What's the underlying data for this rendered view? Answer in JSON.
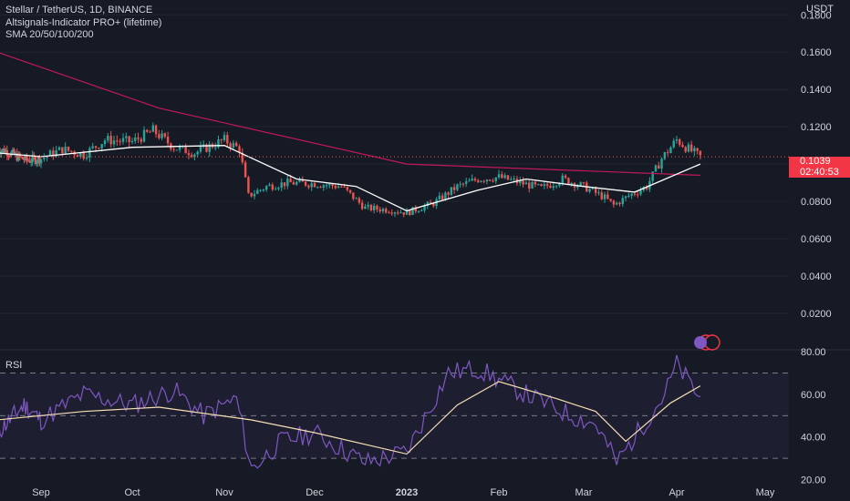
{
  "legend": {
    "symbol": "Stellar / TetherUS, 1D, BINANCE",
    "indicator1": "Altsignals-Indicator PRO+ (lifetime)",
    "indicator2": "SMA 20/50/100/200"
  },
  "currency": "USDT",
  "last_price": {
    "value": "0.1039",
    "countdown": "02:40:53"
  },
  "rsi_label": "RSI",
  "colors": {
    "background": "#161a25",
    "up": "#26a69a",
    "down": "#ef5350",
    "sma_short": "#ffffff",
    "sma_long": "#c2185b",
    "rsi": "#7e57c2",
    "rsi_ma": "#f5deb3",
    "tag": "#f23645"
  },
  "chart_data": [
    {
      "type": "candlestick",
      "axis": "right",
      "y_ticks": [
        "0.0200",
        "0.0400",
        "0.0600",
        "0.0800",
        "0.1000",
        "0.1200",
        "0.1400",
        "0.1600",
        "0.1800"
      ],
      "ylim": [
        0.0,
        0.1855
      ],
      "x_ticks": [
        "Sep",
        "Oct",
        "Nov",
        "Dec",
        "2023",
        "Feb",
        "Mar",
        "Apr",
        "May"
      ],
      "x_dates": [
        "2022-08-01",
        "2022-09-01",
        "2022-10-01",
        "2022-11-01",
        "2022-12-01",
        "2023-01-01",
        "2023-02-01",
        "2023-03-01",
        "2023-04-01",
        "2023-05-01"
      ],
      "close_path": [
        [
          "2022-08-01",
          0.108
        ],
        [
          "2022-08-08",
          0.107
        ],
        [
          "2022-08-15",
          0.104
        ],
        [
          "2022-08-22",
          0.102
        ],
        [
          "2022-09-01",
          0.103
        ],
        [
          "2022-09-08",
          0.108
        ],
        [
          "2022-09-15",
          0.105
        ],
        [
          "2022-09-22",
          0.113
        ],
        [
          "2022-10-01",
          0.112
        ],
        [
          "2022-10-08",
          0.118
        ],
        [
          "2022-10-15",
          0.109
        ],
        [
          "2022-10-22",
          0.106
        ],
        [
          "2022-11-01",
          0.113
        ],
        [
          "2022-11-06",
          0.108
        ],
        [
          "2022-11-09",
          0.083
        ],
        [
          "2022-11-15",
          0.088
        ],
        [
          "2022-11-22",
          0.09
        ],
        [
          "2022-12-01",
          0.0895
        ],
        [
          "2022-12-10",
          0.088
        ],
        [
          "2022-12-18",
          0.0765
        ],
        [
          "2022-12-26",
          0.0755
        ],
        [
          "2023-01-01",
          0.074
        ],
        [
          "2023-01-10",
          0.079
        ],
        [
          "2023-01-18",
          0.088
        ],
        [
          "2023-01-25",
          0.092
        ],
        [
          "2023-02-01",
          0.093
        ],
        [
          "2023-02-08",
          0.09
        ],
        [
          "2023-02-15",
          0.087
        ],
        [
          "2023-02-22",
          0.092
        ],
        [
          "2023-03-01",
          0.088
        ],
        [
          "2023-03-08",
          0.082
        ],
        [
          "2023-03-11",
          0.078
        ],
        [
          "2023-03-16",
          0.083
        ],
        [
          "2023-03-22",
          0.088
        ],
        [
          "2023-03-27",
          0.103
        ],
        [
          "2023-04-01",
          0.113
        ],
        [
          "2023-04-05",
          0.108
        ],
        [
          "2023-04-09",
          0.1039
        ]
      ],
      "series": [
        {
          "name": "SMA 20",
          "values": [
            [
              0.106,
              "2022-08-01"
            ],
            [
              0.104,
              "2022-09-01"
            ],
            [
              0.109,
              "2022-10-01"
            ],
            [
              0.11,
              "2022-11-01"
            ],
            [
              0.092,
              "2022-11-25"
            ],
            [
              0.088,
              "2022-12-15"
            ],
            [
              0.075,
              "2023-01-01"
            ],
            [
              0.086,
              "2023-01-25"
            ],
            [
              0.092,
              "2023-02-10"
            ],
            [
              0.088,
              "2023-03-01"
            ],
            [
              0.085,
              "2023-03-18"
            ],
            [
              0.1,
              "2023-04-09"
            ]
          ]
        },
        {
          "name": "SMA 200",
          "values": [
            [
              0.16,
              "2022-08-01"
            ],
            [
              0.13,
              "2022-10-10"
            ],
            [
              0.1,
              "2023-01-01"
            ],
            [
              0.094,
              "2023-04-09"
            ]
          ]
        }
      ]
    },
    {
      "type": "line",
      "title": "RSI",
      "y_ticks": [
        "20.00",
        "40.00",
        "60.00",
        "80.00"
      ],
      "ylim": [
        18.5,
        80.5
      ],
      "bands": [
        30,
        50,
        70
      ],
      "series": [
        {
          "name": "RSI",
          "values": [
            [
              42,
              "2022-08-01"
            ],
            [
              55,
              "2022-08-20"
            ],
            [
              48,
              "2022-09-01"
            ],
            [
              60,
              "2022-09-15"
            ],
            [
              55,
              "2022-10-01"
            ],
            [
              62,
              "2022-10-15"
            ],
            [
              50,
              "2022-10-25"
            ],
            [
              58,
              "2022-11-05"
            ],
            [
              25,
              "2022-11-10"
            ],
            [
              38,
              "2022-11-20"
            ],
            [
              42,
              "2022-12-01"
            ],
            [
              28,
              "2022-12-18"
            ],
            [
              33,
              "2023-01-01"
            ],
            [
              70,
              "2023-01-15"
            ],
            [
              72,
              "2023-01-25"
            ],
            [
              60,
              "2023-02-10"
            ],
            [
              50,
              "2023-02-25"
            ],
            [
              46,
              "2023-03-05"
            ],
            [
              28,
              "2023-03-12"
            ],
            [
              60,
              "2023-03-28"
            ],
            [
              74,
              "2023-04-01"
            ],
            [
              58,
              "2023-04-09"
            ]
          ]
        },
        {
          "name": "RSI MA",
          "values": [
            [
              48,
              "2022-08-01"
            ],
            [
              52,
              "2022-09-15"
            ],
            [
              54,
              "2022-10-10"
            ],
            [
              48,
              "2022-11-10"
            ],
            [
              42,
              "2022-12-01"
            ],
            [
              32,
              "2023-01-01"
            ],
            [
              55,
              "2023-01-18"
            ],
            [
              66,
              "2023-02-01"
            ],
            [
              58,
              "2023-02-20"
            ],
            [
              52,
              "2023-03-05"
            ],
            [
              38,
              "2023-03-15"
            ],
            [
              56,
              "2023-03-30"
            ],
            [
              64,
              "2023-04-09"
            ]
          ]
        }
      ]
    }
  ]
}
